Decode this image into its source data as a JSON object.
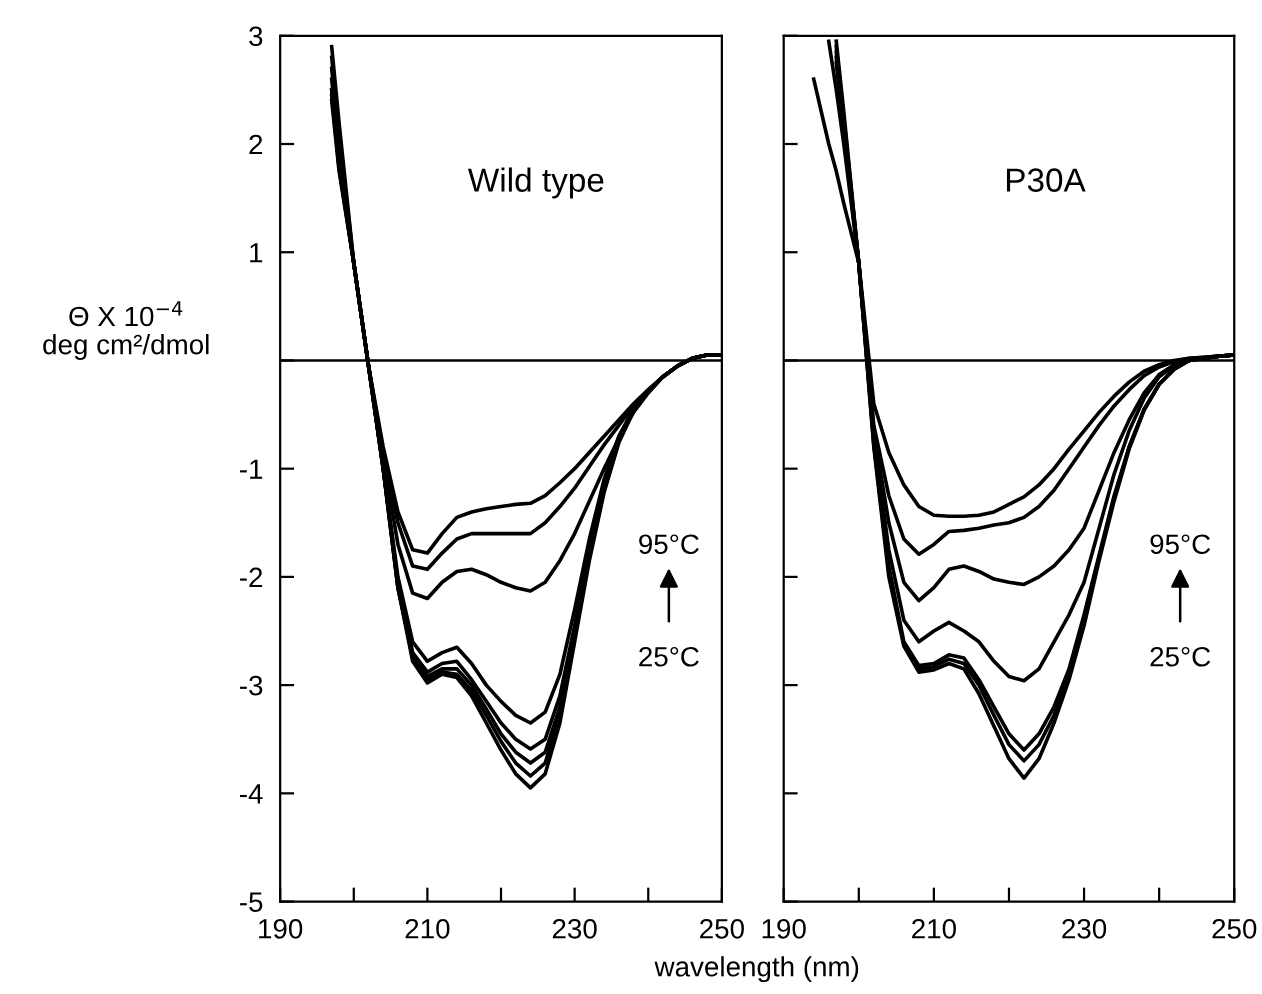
{
  "chart_data": [
    {
      "type": "line",
      "xlabel": "wavelength (nm)",
      "ylabel": "Θ X 10$^{−4}$\ndeg cm²/dmol",
      "annotations": [
        "Wild type",
        "95°C",
        "25°C"
      ],
      "x": [
        197,
        198,
        200,
        202,
        204,
        206,
        208,
        210,
        212,
        214,
        216,
        218,
        220,
        222,
        224,
        226,
        228,
        230,
        232,
        234,
        236,
        238,
        240,
        242,
        244,
        246,
        248,
        250
      ],
      "series": [
        {
          "color": "#000000",
          "values": [
            2.9,
            2.2,
            0.9,
            -0.05,
            -0.8,
            -1.4,
            -1.75,
            -1.78,
            -1.6,
            -1.45,
            -1.4,
            -1.37,
            -1.35,
            -1.33,
            -1.32,
            -1.25,
            -1.13,
            -1.0,
            -0.85,
            -0.7,
            -0.55,
            -0.4,
            -0.27,
            -0.15,
            -0.05,
            0.02,
            0.05,
            0.05
          ]
        },
        {
          "color": "#000000",
          "values": [
            2.8,
            2.1,
            0.9,
            -0.05,
            -0.85,
            -1.5,
            -1.9,
            -1.93,
            -1.78,
            -1.65,
            -1.6,
            -1.6,
            -1.6,
            -1.6,
            -1.6,
            -1.5,
            -1.35,
            -1.18,
            -0.98,
            -0.78,
            -0.6,
            -0.42,
            -0.28,
            -0.15,
            -0.05,
            0.02,
            0.05,
            0.05
          ]
        },
        {
          "color": "#000000",
          "values": [
            2.7,
            2.0,
            0.9,
            -0.05,
            -0.9,
            -1.7,
            -2.15,
            -2.2,
            -2.05,
            -1.95,
            -1.93,
            -1.98,
            -2.05,
            -2.1,
            -2.13,
            -2.05,
            -1.85,
            -1.6,
            -1.3,
            -1.0,
            -0.72,
            -0.48,
            -0.3,
            -0.15,
            -0.05,
            0.02,
            0.05,
            0.05
          ]
        },
        {
          "color": "#000000",
          "values": [
            2.6,
            1.9,
            0.9,
            -0.05,
            -1.0,
            -2.0,
            -2.6,
            -2.78,
            -2.7,
            -2.65,
            -2.8,
            -3.0,
            -3.15,
            -3.28,
            -3.35,
            -3.25,
            -2.9,
            -2.3,
            -1.65,
            -1.1,
            -0.7,
            -0.45,
            -0.28,
            -0.15,
            -0.05,
            0.02,
            0.05,
            0.05
          ]
        },
        {
          "color": "#000000",
          "values": [
            2.5,
            1.85,
            0.9,
            -0.05,
            -1.0,
            -2.05,
            -2.7,
            -2.88,
            -2.8,
            -2.78,
            -2.95,
            -3.15,
            -3.35,
            -3.5,
            -3.59,
            -3.5,
            -3.1,
            -2.45,
            -1.75,
            -1.15,
            -0.72,
            -0.45,
            -0.28,
            -0.15,
            -0.05,
            0.02,
            0.05,
            0.05
          ]
        },
        {
          "color": "#000000",
          "values": [
            2.5,
            1.8,
            0.9,
            -0.05,
            -1.0,
            -2.1,
            -2.72,
            -2.92,
            -2.85,
            -2.85,
            -3.0,
            -3.22,
            -3.45,
            -3.62,
            -3.72,
            -3.62,
            -3.2,
            -2.5,
            -1.8,
            -1.18,
            -0.74,
            -0.46,
            -0.28,
            -0.15,
            -0.05,
            0.02,
            0.05,
            0.05
          ]
        },
        {
          "color": "#000000",
          "values": [
            2.45,
            1.78,
            0.9,
            -0.05,
            -1.0,
            -2.1,
            -2.75,
            -2.95,
            -2.88,
            -2.9,
            -3.05,
            -3.28,
            -3.52,
            -3.72,
            -3.84,
            -3.72,
            -3.28,
            -2.55,
            -1.82,
            -1.2,
            -0.75,
            -0.46,
            -0.28,
            -0.15,
            -0.05,
            0.02,
            0.05,
            0.05
          ]
        },
        {
          "color": "#000000",
          "values": [
            2.4,
            1.75,
            0.9,
            -0.05,
            -1.0,
            -2.1,
            -2.78,
            -2.98,
            -2.9,
            -2.93,
            -3.1,
            -3.35,
            -3.6,
            -3.82,
            -3.95,
            -3.82,
            -3.35,
            -2.6,
            -1.85,
            -1.22,
            -0.76,
            -0.47,
            -0.28,
            -0.15,
            -0.05,
            0.02,
            0.05,
            0.05
          ]
        }
      ],
      "xlim": [
        190,
        250
      ],
      "xticks": [
        190,
        {
          "value": 200,
          "label": null
        },
        210,
        {
          "value": 220,
          "label": null
        },
        230,
        {
          "value": 240,
          "label": null
        },
        250
      ],
      "ylim": [
        -5,
        3
      ],
      "yticks": [
        3,
        2,
        1,
        {
          "value": 0,
          "label": null
        },
        -1,
        -2,
        -3,
        -4,
        -5
      ],
      "ref_lines": [
        {
          "axis": "y",
          "value": 0,
          "color": "#000000"
        }
      ],
      "grid": false,
      "legend": false,
      "line_style": "solid",
      "marker": "none"
    },
    {
      "type": "line",
      "annotations": [
        "P30A",
        "95°C",
        "25°C"
      ],
      "x": [
        194,
        196,
        197,
        198,
        200,
        202,
        204,
        206,
        208,
        210,
        212,
        214,
        216,
        218,
        220,
        222,
        224,
        226,
        228,
        230,
        232,
        234,
        236,
        238,
        240,
        242,
        244,
        246,
        248,
        250
      ],
      "series": [
        {
          "color": "#000000",
          "values": [
            2.6,
            2.0,
            1.75,
            1.45,
            0.9,
            -0.4,
            -0.85,
            -1.15,
            -1.35,
            -1.43,
            -1.44,
            -1.44,
            -1.43,
            -1.4,
            -1.33,
            -1.26,
            -1.15,
            -1.0,
            -0.82,
            -0.65,
            -0.48,
            -0.33,
            -0.2,
            -0.1,
            -0.04,
            0.0,
            0.02,
            0.03,
            0.04,
            0.05
          ]
        },
        {
          "color": "#000000",
          "values": [
            null,
            2.95,
            2.5,
            2.0,
            0.9,
            -0.6,
            -1.25,
            -1.65,
            -1.79,
            -1.7,
            -1.58,
            -1.57,
            -1.55,
            -1.52,
            -1.5,
            -1.45,
            -1.35,
            -1.2,
            -1.0,
            -0.8,
            -0.6,
            -0.42,
            -0.27,
            -0.14,
            -0.06,
            -0.01,
            0.02,
            0.03,
            0.04,
            0.05
          ]
        },
        {
          "color": "#000000",
          "values": [
            null,
            null,
            2.95,
            2.3,
            0.9,
            -0.65,
            -1.5,
            -2.05,
            -2.22,
            -2.1,
            -1.93,
            -1.9,
            -1.95,
            -2.02,
            -2.05,
            -2.07,
            -2.0,
            -1.9,
            -1.75,
            -1.55,
            -1.2,
            -0.85,
            -0.55,
            -0.3,
            -0.13,
            -0.04,
            0.0,
            0.02,
            0.04,
            0.05
          ]
        },
        {
          "color": "#000000",
          "values": [
            null,
            null,
            2.9,
            2.25,
            0.9,
            -0.7,
            -1.75,
            -2.4,
            -2.6,
            -2.5,
            -2.42,
            -2.5,
            -2.6,
            -2.78,
            -2.92,
            -2.96,
            -2.85,
            -2.6,
            -2.35,
            -2.05,
            -1.55,
            -1.05,
            -0.65,
            -0.35,
            -0.15,
            -0.05,
            0.0,
            0.02,
            0.04,
            0.05
          ]
        },
        {
          "color": "#000000",
          "values": [
            null,
            null,
            2.85,
            2.2,
            0.9,
            -0.75,
            -1.9,
            -2.6,
            -2.82,
            -2.8,
            -2.72,
            -2.75,
            -2.95,
            -3.2,
            -3.45,
            -3.6,
            -3.45,
            -3.2,
            -2.85,
            -2.35,
            -1.8,
            -1.25,
            -0.8,
            -0.45,
            -0.22,
            -0.08,
            0.0,
            0.02,
            0.04,
            0.05
          ]
        },
        {
          "color": "#000000",
          "values": [
            null,
            null,
            2.8,
            2.15,
            0.9,
            -0.78,
            -1.95,
            -2.62,
            -2.85,
            -2.83,
            -2.76,
            -2.8,
            -3.0,
            -3.28,
            -3.55,
            -3.7,
            -3.55,
            -3.28,
            -2.9,
            -2.4,
            -1.82,
            -1.27,
            -0.8,
            -0.45,
            -0.22,
            -0.08,
            0.0,
            0.02,
            0.04,
            0.05
          ]
        },
        {
          "color": "#000000",
          "values": [
            null,
            null,
            2.75,
            2.1,
            0.9,
            -0.8,
            -2.0,
            -2.64,
            -2.88,
            -2.86,
            -2.8,
            -2.85,
            -3.08,
            -3.38,
            -3.68,
            -3.86,
            -3.68,
            -3.35,
            -2.95,
            -2.45,
            -1.85,
            -1.3,
            -0.82,
            -0.46,
            -0.22,
            -0.08,
            0.0,
            0.02,
            0.04,
            0.05
          ]
        }
      ],
      "xlim": [
        190,
        250
      ],
      "xticks": [
        190,
        {
          "value": 200,
          "label": null
        },
        210,
        {
          "value": 220,
          "label": null
        },
        230,
        {
          "value": 240,
          "label": null
        },
        250
      ],
      "ylim": [
        -5,
        3
      ],
      "yticks": [
        3,
        2,
        1,
        {
          "value": 0,
          "label": null
        },
        -1,
        -2,
        -3,
        -4,
        -5
      ],
      "tick_labels": "x",
      "ref_lines": [
        {
          "axis": "y",
          "value": 0,
          "color": "#000000"
        }
      ],
      "grid": false,
      "legend": false,
      "line_style": "solid",
      "marker": "none"
    }
  ]
}
